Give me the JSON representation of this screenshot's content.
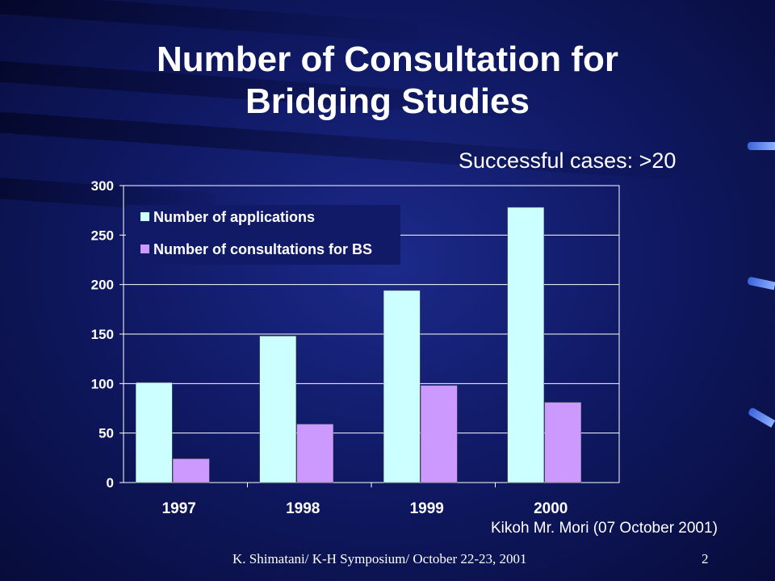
{
  "slide": {
    "title_line1": "Number of Consultation for",
    "title_line2": "Bridging Studies",
    "subtitle": "Successful cases: >20",
    "source": "Kikoh Mr. Mori (07 October 2001)",
    "footer": "K. Shimatani/ K-H Symposium/ October 22-23, 2001",
    "page_number": "2"
  },
  "colors": {
    "background": "#101a66",
    "applications": "#ccffff",
    "consultations": "#cc99ff",
    "gridline": "#ffffff"
  },
  "chart_data": {
    "type": "bar",
    "categories": [
      "1997",
      "1998",
      "1999",
      "2000"
    ],
    "series": [
      {
        "name": "Number of applications",
        "values": [
          101,
          148,
          194,
          278
        ]
      },
      {
        "name": "Number of consultations for BS",
        "values": [
          24,
          59,
          98,
          81
        ]
      }
    ],
    "ylim": [
      0,
      300
    ],
    "yticks": [
      0,
      50,
      100,
      150,
      200,
      250,
      300
    ],
    "grid": true,
    "legend_position": "top-left"
  }
}
